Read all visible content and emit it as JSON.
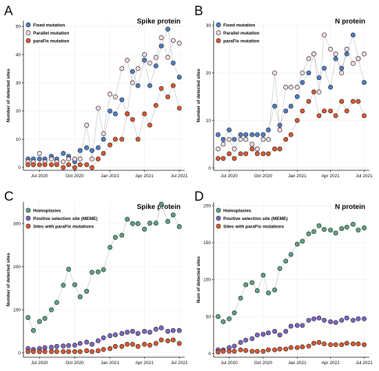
{
  "chart_data": [
    {
      "type": "line",
      "panel_label": "A",
      "title": "Spike protein",
      "xlabel": "",
      "ylabel": "Number of detected sites",
      "x_tick_labels": [
        "Jul 2020",
        "Oct 2020",
        "Jan 2021",
        "Apr 2021",
        "Jul 2021"
      ],
      "y_ticks": [
        0,
        10,
        20,
        30,
        40,
        50
      ],
      "ylim": [
        -1,
        52
      ],
      "legend_position": "top-left",
      "x": [
        "2020-06-01",
        "2020-06-15",
        "2020-07-01",
        "2020-07-15",
        "2020-08-01",
        "2020-08-15",
        "2020-09-01",
        "2020-09-15",
        "2020-10-01",
        "2020-10-15",
        "2020-11-01",
        "2020-11-15",
        "2020-12-01",
        "2020-12-15",
        "2021-01-01",
        "2021-01-15",
        "2021-02-01",
        "2021-02-15",
        "2021-03-01",
        "2021-03-15",
        "2021-04-01",
        "2021-04-15",
        "2021-05-01",
        "2021-05-15",
        "2021-06-01",
        "2021-06-15",
        "2021-07-01"
      ],
      "series": [
        {
          "name": "Fixed mutation",
          "color": "#4d7fc9",
          "values": [
            3,
            3,
            3,
            3,
            4,
            3,
            5,
            4,
            2,
            6,
            7,
            6,
            7,
            10,
            20,
            19,
            24,
            19,
            34,
            29,
            38,
            29,
            36,
            43,
            49,
            37,
            32
          ]
        },
        {
          "name": "Parallel mutation",
          "color": "#f7dde6",
          "values": [
            2,
            2,
            5,
            2,
            3,
            2,
            2,
            3,
            3,
            3,
            15,
            3,
            21,
            12,
            26,
            25,
            35,
            38,
            30,
            35,
            40,
            37,
            39,
            46,
            39,
            45,
            44
          ]
        },
        {
          "name": "paraFix mutation",
          "color": "#e0582e",
          "values": [
            1,
            1,
            1,
            1,
            1,
            1,
            0,
            1,
            0,
            1,
            1,
            0,
            3,
            5,
            8,
            10,
            10,
            19,
            17,
            10,
            19,
            15,
            22,
            28,
            25,
            29,
            21
          ]
        }
      ]
    },
    {
      "type": "line",
      "panel_label": "B",
      "title": "N protein",
      "xlabel": "",
      "ylabel": "Number of detected sites",
      "x_tick_labels": [
        "Jul 2020",
        "Oct 2020",
        "Jan 2021",
        "Apr 2021",
        "Jul 2021"
      ],
      "y_ticks": [
        0,
        10,
        20,
        30
      ],
      "ylim": [
        -0.5,
        31
      ],
      "legend_position": "top-left",
      "x": [
        "2020-06-01",
        "2020-06-15",
        "2020-07-01",
        "2020-07-15",
        "2020-08-01",
        "2020-08-15",
        "2020-09-01",
        "2020-09-15",
        "2020-10-01",
        "2020-10-15",
        "2020-11-01",
        "2020-11-15",
        "2020-12-01",
        "2020-12-15",
        "2021-01-01",
        "2021-01-15",
        "2021-02-01",
        "2021-02-15",
        "2021-03-01",
        "2021-03-15",
        "2021-04-01",
        "2021-04-15",
        "2021-05-01",
        "2021-05-15",
        "2021-06-01",
        "2021-06-15",
        "2021-07-01"
      ],
      "series": [
        {
          "name": "Fixed mutation",
          "color": "#4d7fc9",
          "values": [
            7,
            6,
            8,
            6,
            7,
            7,
            7,
            7,
            7,
            8,
            13,
            9,
            12,
            13,
            15,
            18,
            20,
            24,
            19,
            21,
            17,
            23,
            21,
            24,
            28,
            23,
            18
          ]
        },
        {
          "name": "Parallel mutation",
          "color": "#f7dde6",
          "values": [
            4,
            5,
            6,
            4,
            6,
            6,
            5,
            4,
            6,
            6,
            20,
            8,
            17,
            17,
            17,
            20,
            23,
            24,
            16,
            28,
            25,
            24,
            20,
            25,
            22,
            23,
            24
          ]
        },
        {
          "name": "paraFix mutation",
          "color": "#e0582e",
          "values": [
            2,
            2,
            3,
            2,
            3,
            3,
            4,
            3,
            3,
            3,
            4,
            4,
            6,
            7,
            10,
            12,
            14,
            16,
            11,
            12,
            12,
            11,
            14,
            12,
            14,
            14,
            11
          ]
        }
      ]
    },
    {
      "type": "line",
      "panel_label": "C",
      "title": "Spike protein",
      "xlabel": "",
      "ylabel": "Number of detected sites",
      "x_tick_labels": [
        "Jul 2020",
        "Oct 2020",
        "Jan 2021",
        "Apr 2021",
        "Jul 2021"
      ],
      "y_ticks": [
        0,
        100,
        200,
        300
      ],
      "ylim": [
        -10,
        350
      ],
      "legend_position": "top-left",
      "x": [
        "2020-06-01",
        "2020-06-15",
        "2020-07-01",
        "2020-07-15",
        "2020-08-01",
        "2020-08-15",
        "2020-09-01",
        "2020-09-15",
        "2020-10-01",
        "2020-10-15",
        "2020-11-01",
        "2020-11-15",
        "2020-12-01",
        "2020-12-15",
        "2021-01-01",
        "2021-01-15",
        "2021-02-01",
        "2021-02-15",
        "2021-03-01",
        "2021-03-15",
        "2021-04-01",
        "2021-04-15",
        "2021-05-01",
        "2021-05-15",
        "2021-06-01",
        "2021-06-15",
        "2021-07-01"
      ],
      "series": [
        {
          "name": "Homoplasies",
          "color": "#5aa882",
          "values": [
            82,
            52,
            73,
            80,
            100,
            117,
            157,
            194,
            158,
            130,
            143,
            187,
            188,
            193,
            245,
            268,
            273,
            310,
            300,
            300,
            287,
            301,
            301,
            345,
            305,
            320,
            293
          ]
        },
        {
          "name": "Positive selection site (MEME)",
          "color": "#7f66c8",
          "values": [
            10,
            8,
            10,
            12,
            13,
            15,
            16,
            17,
            18,
            22,
            25,
            20,
            28,
            35,
            40,
            42,
            45,
            48,
            50,
            45,
            50,
            48,
            55,
            58,
            50,
            52,
            52
          ]
        },
        {
          "name": "Sites with paraFix mutations",
          "color": "#e0582e",
          "values": [
            3,
            3,
            3,
            3,
            3,
            3,
            3,
            3,
            3,
            3,
            5,
            3,
            5,
            8,
            10,
            15,
            15,
            20,
            20,
            15,
            20,
            18,
            22,
            30,
            28,
            30,
            22
          ]
        }
      ]
    },
    {
      "type": "line",
      "panel_label": "D",
      "title": "N protein",
      "xlabel": "",
      "ylabel": "Num of detected sites",
      "x_tick_labels": [
        "Jul 2020",
        "Oct 2020",
        "Jan 2021",
        "Apr 2021",
        "Jul 2021"
      ],
      "y_ticks": [
        0,
        50,
        100,
        150,
        200
      ],
      "ylim": [
        -5,
        205
      ],
      "legend_position": "top-left",
      "x": [
        "2020-06-01",
        "2020-06-15",
        "2020-07-01",
        "2020-07-15",
        "2020-08-01",
        "2020-08-15",
        "2020-09-01",
        "2020-09-15",
        "2020-10-01",
        "2020-10-15",
        "2020-11-01",
        "2020-11-15",
        "2020-12-01",
        "2020-12-15",
        "2021-01-01",
        "2021-01-15",
        "2021-02-01",
        "2021-02-15",
        "2021-03-01",
        "2021-03-15",
        "2021-04-01",
        "2021-04-15",
        "2021-05-01",
        "2021-05-15",
        "2021-06-01",
        "2021-06-15",
        "2021-07-01"
      ],
      "series": [
        {
          "name": "Homoplasies",
          "color": "#5aa882",
          "values": [
            50,
            43,
            47,
            55,
            75,
            93,
            96,
            85,
            106,
            82,
            86,
            115,
            125,
            134,
            148,
            152,
            162,
            165,
            173,
            168,
            167,
            163,
            169,
            171,
            175,
            167,
            170
          ]
        },
        {
          "name": "Positive selection site (MEME)",
          "color": "#7f66c8",
          "values": [
            5,
            5,
            8,
            10,
            15,
            18,
            20,
            25,
            26,
            28,
            30,
            25,
            30,
            37,
            38,
            38,
            45,
            47,
            48,
            45,
            43,
            42,
            45,
            48,
            45,
            47,
            47
          ]
        },
        {
          "name": "Sites with paraFix mutations",
          "color": "#e0582e",
          "values": [
            2,
            3,
            3,
            3,
            5,
            4,
            3,
            3,
            3,
            5,
            5,
            6,
            6,
            8,
            8,
            9,
            10,
            14,
            15,
            13,
            12,
            12,
            12,
            14,
            13,
            13,
            12
          ]
        }
      ]
    }
  ]
}
